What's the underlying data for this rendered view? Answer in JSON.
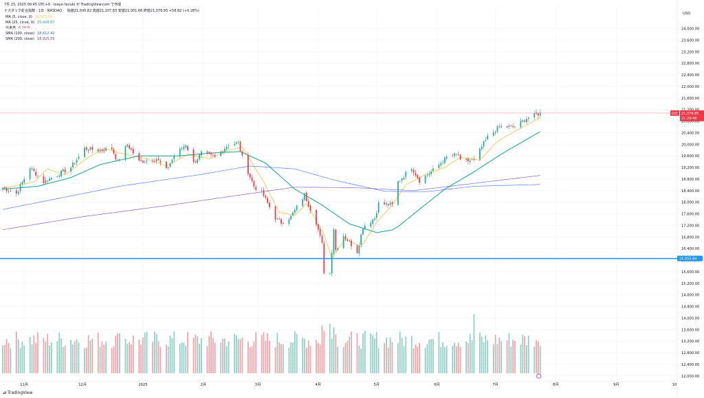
{
  "header": {
    "line1": "7月 25, 2025 00:45 UTC+9 · tooyo-tanuki が TradingView.com で作成",
    "symbol_line": "ナスダック総合指数 · 1日 · NASDAQ",
    "ohlc": "始値21,080.82  高値21,107.83  安値21,001.68  終値21,078.85  +58.82 (+0.28%)"
  },
  "legend": [
    {
      "label": "MA (5, close, 0)",
      "value": "20,925.76",
      "color": "#f2c94c"
    },
    {
      "label": "MA (25, close, 0)",
      "value": "20,438.87",
      "color": "#22ab94"
    },
    {
      "label": "出来高",
      "value": "6.18 B",
      "color": "#f23645"
    },
    {
      "label": "SMA (100, close)",
      "value": "18,612.42",
      "color": "#2962ff"
    },
    {
      "label": "SMA (200, close)",
      "value": "18,925.55",
      "color": "#673ab7"
    }
  ],
  "price_axis": {
    "currency": "USD",
    "ticks": [
      "24,000.00",
      "23,600.00",
      "23,200.00",
      "22,800.00",
      "22,400.00",
      "22,000.00",
      "21,600.00",
      "21,200.00",
      "20,800.00",
      "20,400.00",
      "20,000.00",
      "19,600.00",
      "19,200.00",
      "18,800.00",
      "18,400.00",
      "18,000.00",
      "17,600.00",
      "17,200.00",
      "16,800.00",
      "16,400.00",
      "16,000.00",
      "15,600.00",
      "15,200.00",
      "14,800.00",
      "14,400.00",
      "14,000.00",
      "13,600.00",
      "13,200.00",
      "12,800.00",
      "12,400.00",
      "12,000.00"
    ]
  },
  "time_axis": [
    "11月",
    "12月",
    "2025",
    "2月",
    "3月",
    "4月",
    "5月",
    "6月",
    "7月",
    "8月",
    "9月",
    "10"
  ],
  "tags": {
    "last_price": "21,078.85",
    "last_sub": "21:29:48",
    "symbol_tag": "IXIC",
    "hline_price": "16,055.84"
  },
  "colors": {
    "up": "#22ab94",
    "down": "#f23645",
    "vol_up": "#8fd0c4",
    "vol_down": "#f7a1a7",
    "hline": "#2196f3"
  },
  "branding": "TradingView",
  "chart_data": {
    "type": "candlestick",
    "title": "ナスダック総合指数 · 1日 · NASDAQ",
    "ylabel": "USD",
    "ylim": [
      11900,
      24700
    ],
    "x_range": [
      "2024-10-21",
      "2025-10-02"
    ],
    "horizontal_line": 16055.84,
    "close_path": [
      [
        "2024-10-21",
        18500
      ],
      [
        "2024-10-28",
        18300
      ],
      [
        "2024-11-04",
        19200
      ],
      [
        "2024-11-11",
        18700
      ],
      [
        "2024-11-18",
        18950
      ],
      [
        "2024-11-25",
        19200
      ],
      [
        "2024-12-02",
        19850
      ],
      [
        "2024-12-09",
        19800
      ],
      [
        "2024-12-16",
        19850
      ],
      [
        "2024-12-19",
        19400
      ],
      [
        "2024-12-24",
        20000
      ],
      [
        "2024-12-30",
        19400
      ],
      [
        "2025-01-08",
        19500
      ],
      [
        "2025-01-13",
        19100
      ],
      [
        "2025-01-17",
        19600
      ],
      [
        "2025-01-23",
        20000
      ],
      [
        "2025-01-27",
        19350
      ],
      [
        "2025-01-31",
        19700
      ],
      [
        "2025-02-07",
        19550
      ],
      [
        "2025-02-14",
        20000
      ],
      [
        "2025-02-19",
        20050
      ],
      [
        "2025-02-21",
        19550
      ],
      [
        "2025-02-27",
        18550
      ],
      [
        "2025-03-03",
        18350
      ],
      [
        "2025-03-10",
        17450
      ],
      [
        "2025-03-13",
        17300
      ],
      [
        "2025-03-18",
        17500
      ],
      [
        "2025-03-25",
        18250
      ],
      [
        "2025-03-31",
        17300
      ],
      [
        "2025-04-03",
        16550
      ],
      [
        "2025-04-04",
        15600
      ],
      [
        "2025-04-07",
        15550
      ],
      [
        "2025-04-09",
        17100
      ],
      [
        "2025-04-10",
        16350
      ],
      [
        "2025-04-14",
        16850
      ],
      [
        "2025-04-21",
        16300
      ],
      [
        "2025-04-24",
        17150
      ],
      [
        "2025-04-30",
        17450
      ],
      [
        "2025-05-02",
        17950
      ],
      [
        "2025-05-09",
        17900
      ],
      [
        "2025-05-12",
        18700
      ],
      [
        "2025-05-19",
        19200
      ],
      [
        "2025-05-23",
        18750
      ],
      [
        "2025-05-30",
        19100
      ],
      [
        "2025-06-06",
        19550
      ],
      [
        "2025-06-12",
        19650
      ],
      [
        "2025-06-13",
        19400
      ],
      [
        "2025-06-20",
        19450
      ],
      [
        "2025-06-27",
        20250
      ],
      [
        "2025-07-03",
        20600
      ],
      [
        "2025-07-11",
        20600
      ],
      [
        "2025-07-17",
        20900
      ],
      [
        "2025-07-24",
        21078.85
      ]
    ],
    "series": [
      {
        "name": "MA (5, close, 0)",
        "path": [
          [
            "2024-10-21",
            18480
          ],
          [
            "2024-11-06",
            18700
          ],
          [
            "2024-11-13",
            19150
          ],
          [
            "2024-11-22",
            18950
          ],
          [
            "2024-12-05",
            19600
          ],
          [
            "2024-12-13",
            19850
          ],
          [
            "2024-12-20",
            19700
          ],
          [
            "2025-01-03",
            19500
          ],
          [
            "2025-01-13",
            19250
          ],
          [
            "2025-01-24",
            19650
          ],
          [
            "2025-02-04",
            19500
          ],
          [
            "2025-02-14",
            19800
          ],
          [
            "2025-02-21",
            19900
          ],
          [
            "2025-03-04",
            18700
          ],
          [
            "2025-03-12",
            17650
          ],
          [
            "2025-03-20",
            17550
          ],
          [
            "2025-03-26",
            17950
          ],
          [
            "2025-04-04",
            16900
          ],
          [
            "2025-04-08",
            16050
          ],
          [
            "2025-04-15",
            16750
          ],
          [
            "2025-04-23",
            16450
          ],
          [
            "2025-05-01",
            17300
          ],
          [
            "2025-05-09",
            17900
          ],
          [
            "2025-05-16",
            18600
          ],
          [
            "2025-05-26",
            18950
          ],
          [
            "2025-06-05",
            19200
          ],
          [
            "2025-06-13",
            19550
          ],
          [
            "2025-06-23",
            19450
          ],
          [
            "2025-07-02",
            20100
          ],
          [
            "2025-07-11",
            20450
          ],
          [
            "2025-07-24",
            20925.76
          ]
        ]
      },
      {
        "name": "MA (25, close, 0)",
        "path": [
          [
            "2024-10-21",
            18450
          ],
          [
            "2024-11-08",
            18550
          ],
          [
            "2024-11-25",
            18850
          ],
          [
            "2024-12-10",
            19300
          ],
          [
            "2024-12-30",
            19600
          ],
          [
            "2025-01-20",
            19600
          ],
          [
            "2025-02-05",
            19700
          ],
          [
            "2025-02-20",
            19750
          ],
          [
            "2025-03-05",
            19350
          ],
          [
            "2025-03-20",
            18450
          ],
          [
            "2025-04-03",
            17900
          ],
          [
            "2025-04-17",
            17250
          ],
          [
            "2025-05-01",
            16950
          ],
          [
            "2025-05-10",
            17050
          ],
          [
            "2025-05-22",
            17700
          ],
          [
            "2025-06-05",
            18450
          ],
          [
            "2025-06-20",
            19050
          ],
          [
            "2025-07-05",
            19700
          ],
          [
            "2025-07-24",
            20438.87
          ]
        ]
      },
      {
        "name": "SMA (100, close)",
        "path": [
          [
            "2024-10-21",
            17750
          ],
          [
            "2024-11-20",
            18150
          ],
          [
            "2024-12-20",
            18550
          ],
          [
            "2025-01-30",
            18950
          ],
          [
            "2025-02-25",
            19250
          ],
          [
            "2025-03-20",
            19150
          ],
          [
            "2025-04-10",
            18750
          ],
          [
            "2025-05-05",
            18380
          ],
          [
            "2025-05-25",
            18350
          ],
          [
            "2025-06-20",
            18550
          ],
          [
            "2025-07-24",
            18612.42
          ]
        ]
      },
      {
        "name": "SMA (200, close)",
        "path": [
          [
            "2024-10-21",
            17050
          ],
          [
            "2024-12-01",
            17500
          ],
          [
            "2025-01-15",
            17900
          ],
          [
            "2025-02-20",
            18250
          ],
          [
            "2025-03-20",
            18520
          ],
          [
            "2025-04-20",
            18500
          ],
          [
            "2025-05-20",
            18400
          ],
          [
            "2025-06-20",
            18650
          ],
          [
            "2025-07-24",
            18925.55
          ]
        ]
      }
    ],
    "volume_panel": {
      "ylim": [
        0,
        2
      ],
      "last_value": "6.18 B"
    }
  }
}
